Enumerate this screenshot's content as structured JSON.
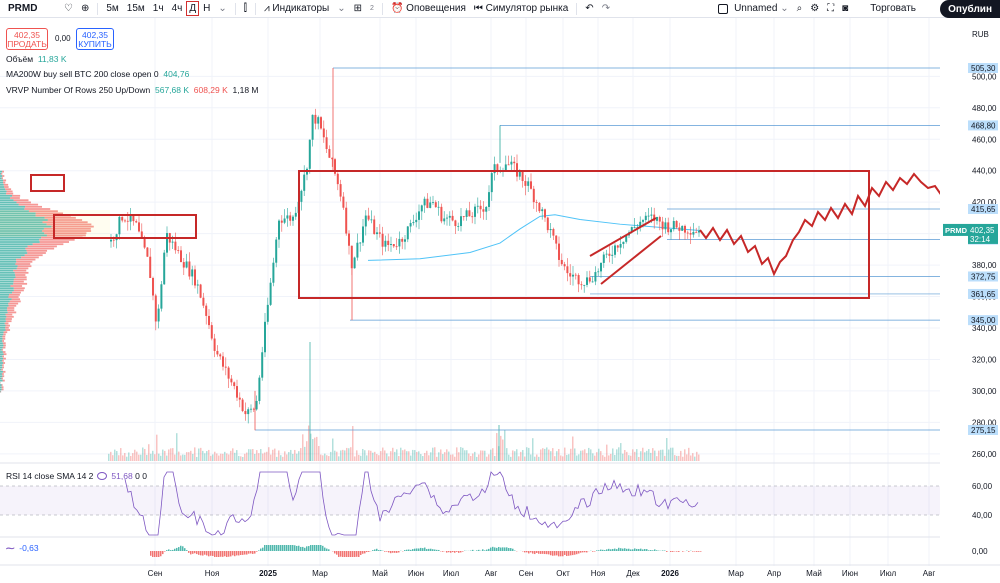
{
  "toolbar": {
    "symbol": "PRMD",
    "intervals": [
      "5м",
      "15м",
      "1ч",
      "4ч",
      "Д",
      "Н"
    ],
    "active_interval": "Д",
    "indicators_label": "Индикаторы",
    "templates_count": "2",
    "alerts_label": "Оповещения",
    "replay_label": "Симулятор рынка",
    "layout_name": "Unnamed",
    "trade_label": "Торговать",
    "publish_label": "Опублин"
  },
  "trading": {
    "sell_price": "402,35",
    "sell_label": "ПРОДАТЬ",
    "spread": "0,00",
    "buy_price": "402,35",
    "buy_label": "КУПИТЬ"
  },
  "legends": {
    "volume_label": "Объём",
    "volume_value": "11,83 K",
    "ma_label": "MA200W buy sell BTC 200 close open 0",
    "ma_value": "404,76",
    "vrvp_label": "VRVP Number Of Rows 250 Up/Down",
    "vrvp_up": "567,68 K",
    "vrvp_down": "608,29 K",
    "vrvp_total": "1,18 M",
    "rsi_label": "RSI 14 close SMA 14 2",
    "rsi_value": "51,68",
    "rsi_v2": "0",
    "rsi_v3": "0",
    "macd_value": "-0,63"
  },
  "price_axis": {
    "currency": "RUB",
    "ticks": [
      "500,00",
      "480,00",
      "460,00",
      "440,00",
      "420,00",
      "400,00",
      "380,00",
      "360,00",
      "340,00",
      "320,00",
      "300,00",
      "280,00",
      "260,00"
    ],
    "levels": [
      {
        "label": "505,30",
        "value": 505.3
      },
      {
        "label": "468,80",
        "value": 468.8
      },
      {
        "label": "415,65",
        "value": 415.65
      },
      {
        "label": "396,20",
        "value": 396.2
      },
      {
        "label": "372,75",
        "value": 372.75
      },
      {
        "label": "361,65",
        "value": 361.65
      },
      {
        "label": "345,00",
        "value": 345.0
      },
      {
        "label": "275,15",
        "value": 275.15
      }
    ],
    "current_symbol": "PRMD",
    "current_price": "402,35",
    "countdown": "32:14",
    "rsi_ticks": [
      "60,00",
      "40,00"
    ],
    "macd_tick": "0,00"
  },
  "time_axis": {
    "labels": [
      {
        "t": "Сен",
        "x": 155
      },
      {
        "t": "Ноя",
        "x": 212
      },
      {
        "t": "2025",
        "x": 268
      },
      {
        "t": "Мар",
        "x": 320
      },
      {
        "t": "Май",
        "x": 380
      },
      {
        "t": "Июн",
        "x": 416
      },
      {
        "t": "Июл",
        "x": 451
      },
      {
        "t": "Авг",
        "x": 491
      },
      {
        "t": "Сен",
        "x": 526
      },
      {
        "t": "Окт",
        "x": 563
      },
      {
        "t": "Ноя",
        "x": 598
      },
      {
        "t": "Дек",
        "x": 633
      },
      {
        "t": "2026",
        "x": 670
      },
      {
        "t": "Мар",
        "x": 736
      },
      {
        "t": "Апр",
        "x": 774
      },
      {
        "t": "Май",
        "x": 814
      },
      {
        "t": "Июн",
        "x": 850
      },
      {
        "t": "Июл",
        "x": 888
      },
      {
        "t": "Авг",
        "x": 929
      }
    ]
  },
  "colors": {
    "up": "#26a69a",
    "down": "#ef5350",
    "annotation": "#c62828",
    "level_line": "#5b9bd5",
    "label_bg": "#bbdefb",
    "ma": "#4fc3f7",
    "rsi": "#7e57c2"
  }
}
